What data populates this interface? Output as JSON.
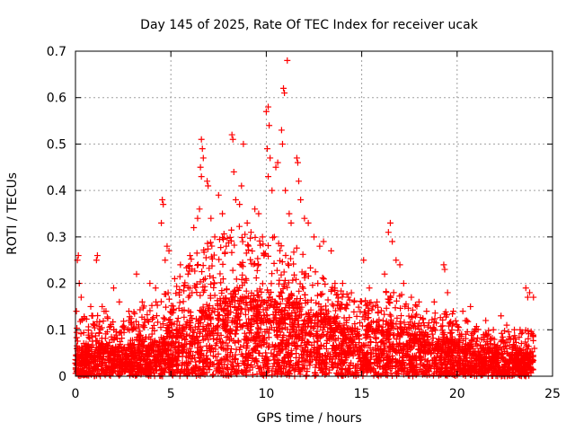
{
  "chart_data": {
    "type": "scatter",
    "title": "Day 145 of 2025, Rate Of TEC Index for receiver ucak",
    "xlabel": "GPS time / hours",
    "ylabel": "ROTI / TECUs",
    "xlim": [
      0,
      25
    ],
    "ylim": [
      0,
      0.7
    ],
    "xticks": [
      0,
      5,
      10,
      15,
      20,
      25
    ],
    "yticks": [
      0,
      0.1,
      0.2,
      0.3,
      0.4,
      0.5,
      0.6,
      0.7
    ],
    "xtick_labels": [
      "0",
      "5",
      "10",
      "15",
      "20",
      "25"
    ],
    "ytick_labels": [
      "0",
      "0.1",
      "0.2",
      "0.3",
      "0.4",
      "0.5",
      "0.6",
      "0.7"
    ],
    "grid": true,
    "legend": "none",
    "marker": "plus",
    "color": "#ff0000",
    "series": [
      {
        "points": [
          [
            0.05,
            0.14
          ],
          [
            0.1,
            0.25
          ],
          [
            0.15,
            0.26
          ],
          [
            0.2,
            0.2
          ],
          [
            0.3,
            0.17
          ],
          [
            0.1,
            0.06
          ],
          [
            0.2,
            0.04
          ],
          [
            1.15,
            0.26
          ],
          [
            1.1,
            0.25
          ],
          [
            0.8,
            0.15
          ],
          [
            0.9,
            0.13
          ],
          [
            1.4,
            0.15
          ],
          [
            1.6,
            0.14
          ],
          [
            2.0,
            0.19
          ],
          [
            2.3,
            0.16
          ],
          [
            2.8,
            0.14
          ],
          [
            3.2,
            0.22
          ],
          [
            3.5,
            0.16
          ],
          [
            3.9,
            0.2
          ],
          [
            4.2,
            0.19
          ],
          [
            4.55,
            0.38
          ],
          [
            4.6,
            0.37
          ],
          [
            4.5,
            0.33
          ],
          [
            4.8,
            0.28
          ],
          [
            4.9,
            0.27
          ],
          [
            4.7,
            0.25
          ],
          [
            5.2,
            0.21
          ],
          [
            5.5,
            0.24
          ],
          [
            5.9,
            0.22
          ],
          [
            6.0,
            0.26
          ],
          [
            6.2,
            0.32
          ],
          [
            6.4,
            0.34
          ],
          [
            6.5,
            0.36
          ],
          [
            6.6,
            0.51
          ],
          [
            6.65,
            0.49
          ],
          [
            6.7,
            0.47
          ],
          [
            6.55,
            0.45
          ],
          [
            6.6,
            0.43
          ],
          [
            6.9,
            0.42
          ],
          [
            6.95,
            0.41
          ],
          [
            7.1,
            0.34
          ],
          [
            7.3,
            0.3
          ],
          [
            7.5,
            0.39
          ],
          [
            7.7,
            0.35
          ],
          [
            7.9,
            0.28
          ],
          [
            8.2,
            0.52
          ],
          [
            8.25,
            0.51
          ],
          [
            8.3,
            0.44
          ],
          [
            8.4,
            0.38
          ],
          [
            8.6,
            0.37
          ],
          [
            8.7,
            0.41
          ],
          [
            8.8,
            0.5
          ],
          [
            9.0,
            0.33
          ],
          [
            9.2,
            0.31
          ],
          [
            9.4,
            0.36
          ],
          [
            9.6,
            0.35
          ],
          [
            9.8,
            0.3
          ],
          [
            10.0,
            0.57
          ],
          [
            10.1,
            0.58
          ],
          [
            10.15,
            0.54
          ],
          [
            10.05,
            0.49
          ],
          [
            10.2,
            0.47
          ],
          [
            10.1,
            0.43
          ],
          [
            10.3,
            0.4
          ],
          [
            10.5,
            0.45
          ],
          [
            10.6,
            0.46
          ],
          [
            10.8,
            0.53
          ],
          [
            10.85,
            0.5
          ],
          [
            10.9,
            0.62
          ],
          [
            10.95,
            0.61
          ],
          [
            11.1,
            0.68
          ],
          [
            11.0,
            0.4
          ],
          [
            11.2,
            0.35
          ],
          [
            11.3,
            0.33
          ],
          [
            11.6,
            0.47
          ],
          [
            11.65,
            0.46
          ],
          [
            11.7,
            0.42
          ],
          [
            11.8,
            0.38
          ],
          [
            12.0,
            0.34
          ],
          [
            12.2,
            0.33
          ],
          [
            12.5,
            0.3
          ],
          [
            12.8,
            0.28
          ],
          [
            13.0,
            0.29
          ],
          [
            13.4,
            0.27
          ],
          [
            13.6,
            0.2
          ],
          [
            14.0,
            0.2
          ],
          [
            14.3,
            0.17
          ],
          [
            14.6,
            0.16
          ],
          [
            15.1,
            0.25
          ],
          [
            15.4,
            0.19
          ],
          [
            15.8,
            0.16
          ],
          [
            16.2,
            0.22
          ],
          [
            16.4,
            0.31
          ],
          [
            16.5,
            0.33
          ],
          [
            16.6,
            0.29
          ],
          [
            16.8,
            0.25
          ],
          [
            17.0,
            0.24
          ],
          [
            17.2,
            0.2
          ],
          [
            17.6,
            0.17
          ],
          [
            18.0,
            0.16
          ],
          [
            18.4,
            0.14
          ],
          [
            18.8,
            0.16
          ],
          [
            19.3,
            0.24
          ],
          [
            19.35,
            0.23
          ],
          [
            19.5,
            0.18
          ],
          [
            19.8,
            0.14
          ],
          [
            20.3,
            0.14
          ],
          [
            20.5,
            0.12
          ],
          [
            20.7,
            0.15
          ],
          [
            21.0,
            0.1
          ],
          [
            21.5,
            0.12
          ],
          [
            21.9,
            0.1
          ],
          [
            22.3,
            0.13
          ],
          [
            22.6,
            0.11
          ],
          [
            23.0,
            0.1
          ],
          [
            23.3,
            0.1
          ],
          [
            23.6,
            0.19
          ],
          [
            23.7,
            0.17
          ],
          [
            23.8,
            0.18
          ],
          [
            24.0,
            0.17
          ],
          [
            24.05,
            0.06
          ],
          [
            23.95,
            0.03
          ]
        ],
        "envelope": {
          "x": [
            0,
            0.5,
            1,
            1.5,
            2,
            2.5,
            3,
            3.5,
            4,
            4.5,
            5,
            5.5,
            6,
            6.5,
            7,
            7.5,
            8,
            8.5,
            9,
            9.5,
            10,
            10.5,
            11,
            11.5,
            12,
            12.5,
            13,
            13.5,
            14,
            14.5,
            15,
            15.5,
            16,
            16.5,
            17,
            17.5,
            18,
            18.5,
            19,
            19.5,
            20,
            20.5,
            21,
            21.5,
            22,
            22.5,
            23,
            23.5,
            24
          ],
          "dense": [
            0.05,
            0.06,
            0.07,
            0.07,
            0.06,
            0.06,
            0.07,
            0.07,
            0.07,
            0.08,
            0.1,
            0.11,
            0.12,
            0.14,
            0.15,
            0.16,
            0.17,
            0.18,
            0.17,
            0.16,
            0.16,
            0.16,
            0.16,
            0.15,
            0.14,
            0.13,
            0.13,
            0.12,
            0.11,
            0.1,
            0.1,
            0.1,
            0.1,
            0.11,
            0.1,
            0.09,
            0.09,
            0.08,
            0.08,
            0.08,
            0.07,
            0.07,
            0.06,
            0.06,
            0.05,
            0.05,
            0.05,
            0.05,
            0.05
          ],
          "sparse": [
            0.12,
            0.13,
            0.14,
            0.14,
            0.13,
            0.13,
            0.14,
            0.15,
            0.16,
            0.19,
            0.2,
            0.22,
            0.25,
            0.28,
            0.29,
            0.3,
            0.32,
            0.33,
            0.31,
            0.3,
            0.3,
            0.32,
            0.31,
            0.28,
            0.26,
            0.24,
            0.22,
            0.2,
            0.19,
            0.18,
            0.17,
            0.16,
            0.17,
            0.2,
            0.18,
            0.16,
            0.15,
            0.14,
            0.14,
            0.14,
            0.13,
            0.12,
            0.11,
            0.1,
            0.1,
            0.1,
            0.09,
            0.1,
            0.1
          ]
        }
      }
    ]
  }
}
